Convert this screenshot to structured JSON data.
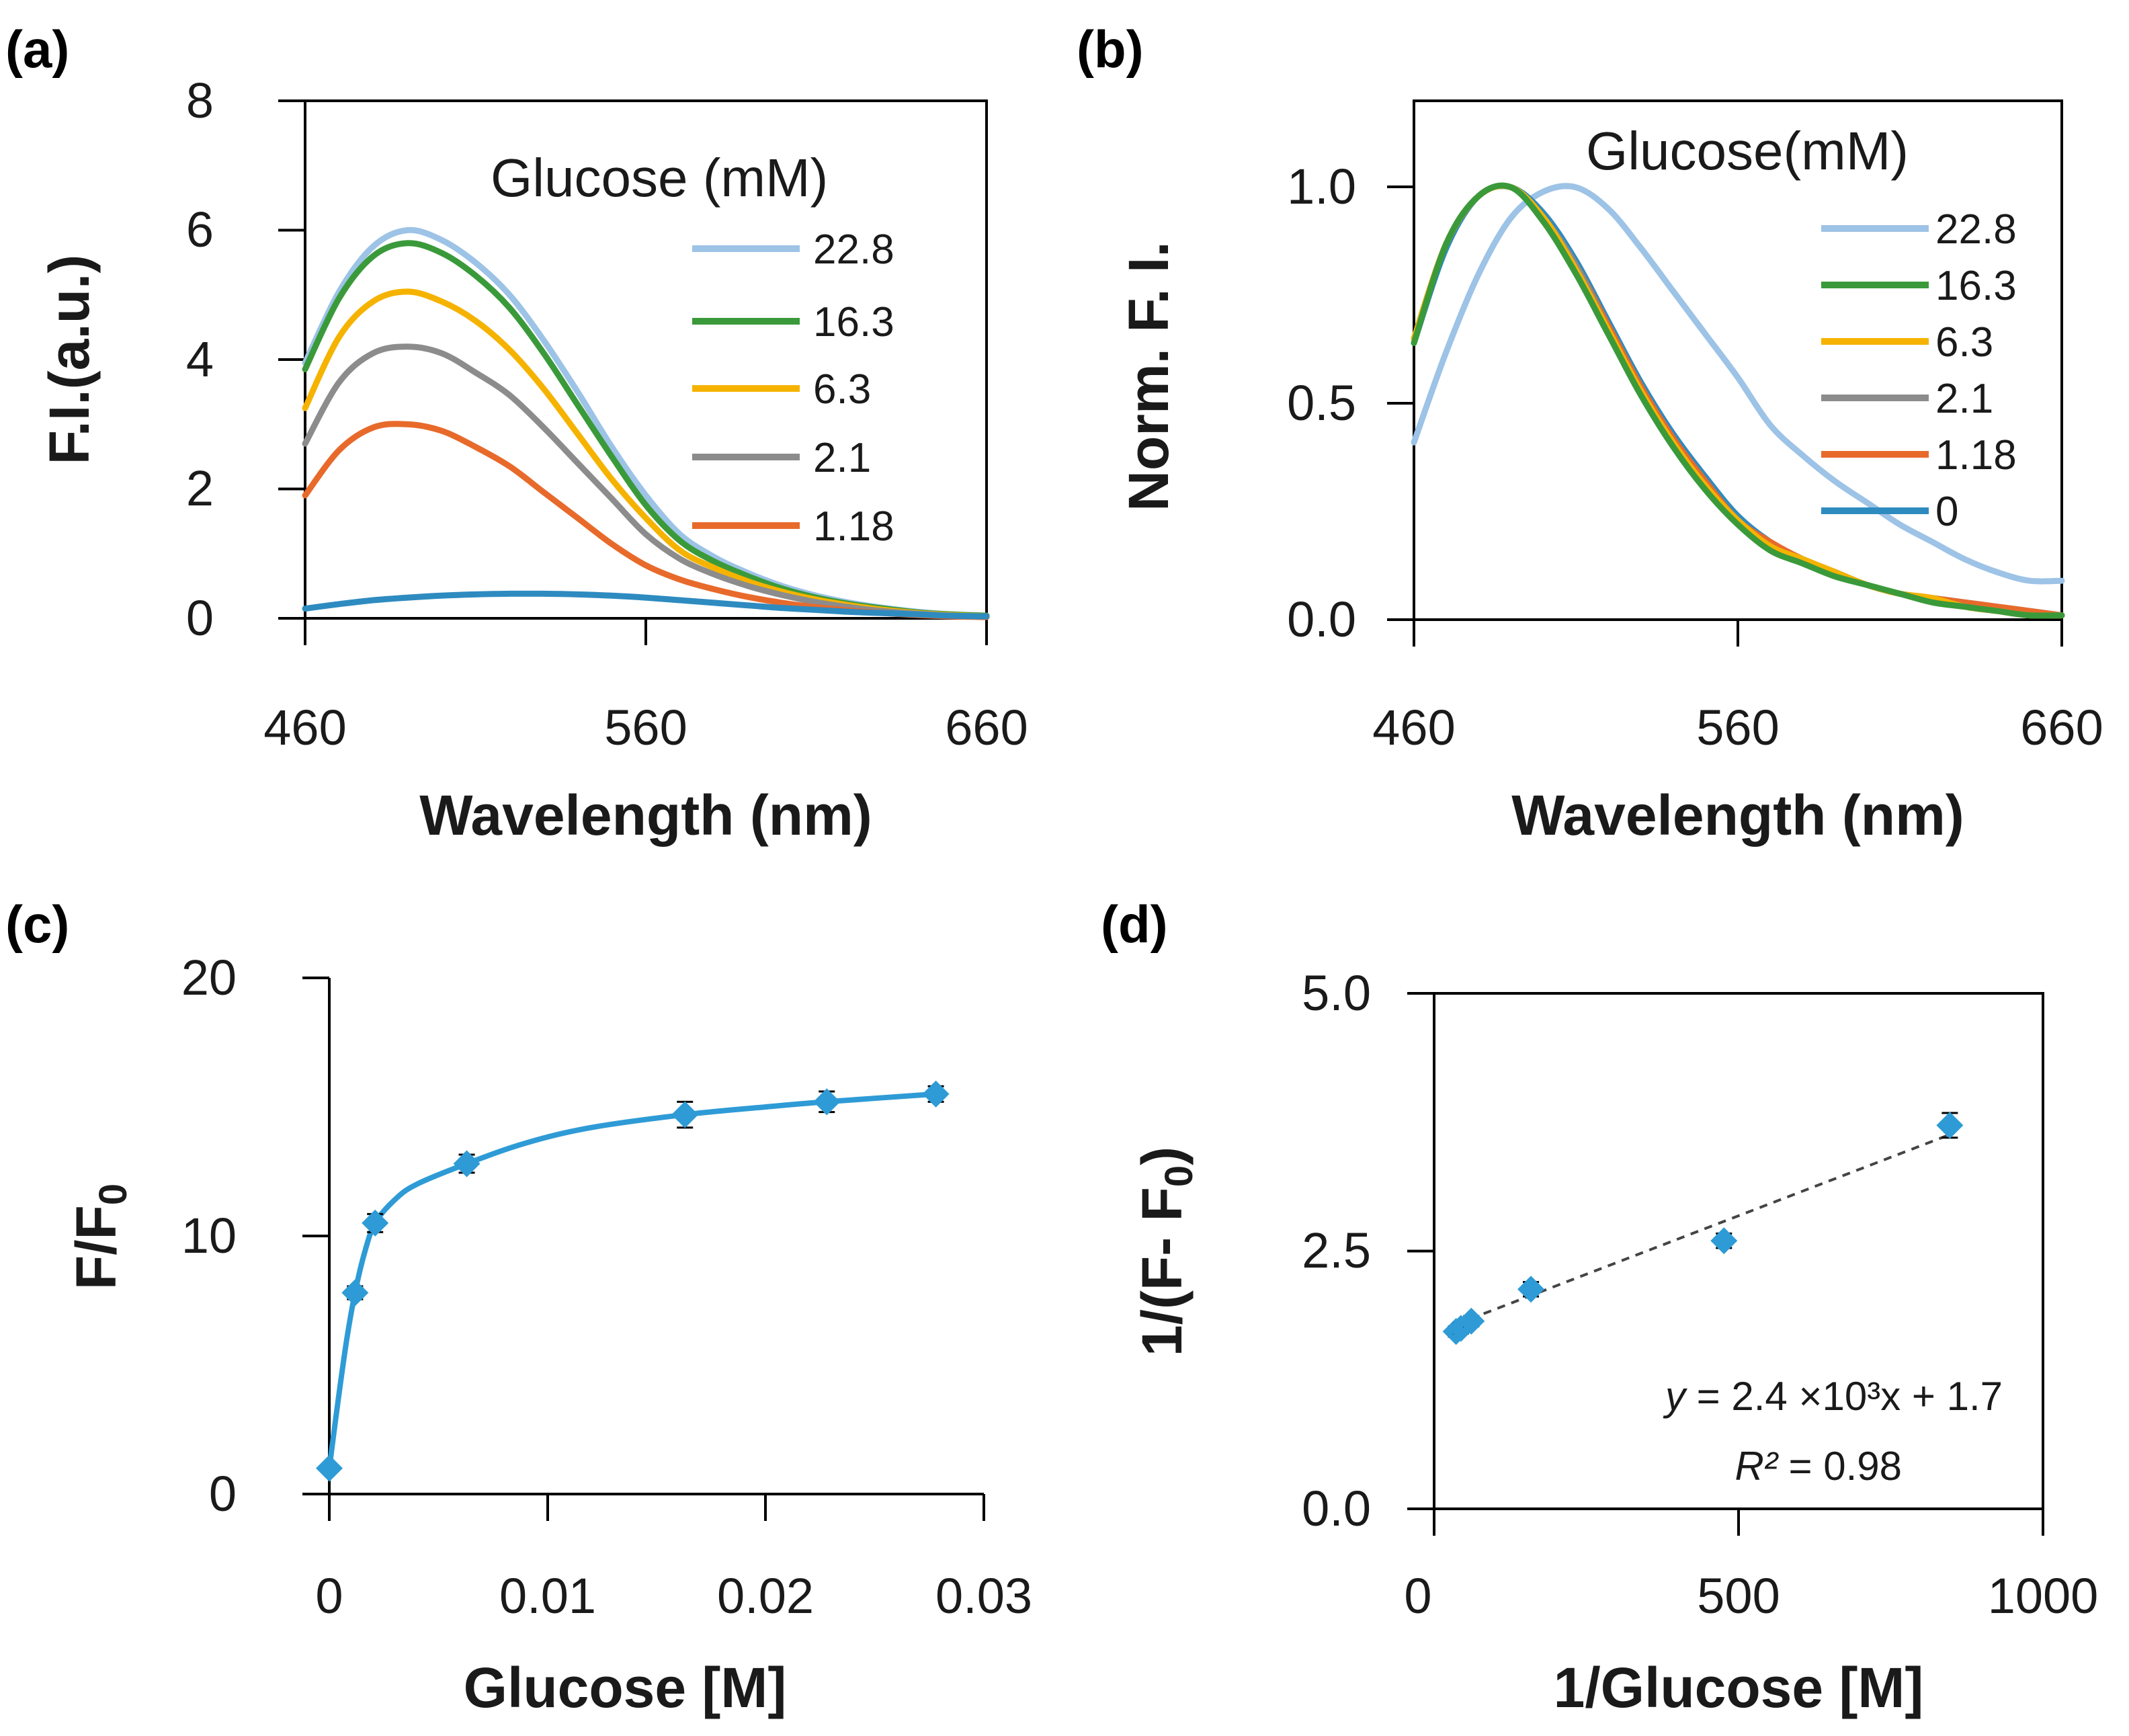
{
  "chart_data": [
    {
      "id": "a",
      "panel_label": "(a)",
      "type": "line",
      "xlabel": "Wavelength (nm)",
      "ylabel": "F.I.(a.u.)",
      "xlim": [
        460,
        660
      ],
      "ylim": [
        0,
        8
      ],
      "xticks": [
        "460",
        "560",
        "660"
      ],
      "yticks": [
        "0",
        "2",
        "4",
        "6",
        "8"
      ],
      "legend_title": "Glucose  (mM)",
      "x": [
        460,
        470,
        480,
        490,
        500,
        510,
        520,
        530,
        540,
        550,
        560,
        570,
        580,
        590,
        600,
        610,
        620,
        630,
        640,
        650,
        660
      ],
      "series": [
        {
          "name": "22.8",
          "color": "#9DC3E6",
          "legend": true,
          "values": [
            3.95,
            5.05,
            5.75,
            6.0,
            5.85,
            5.5,
            5.0,
            4.3,
            3.5,
            2.65,
            1.9,
            1.3,
            0.95,
            0.7,
            0.5,
            0.35,
            0.24,
            0.16,
            0.1,
            0.06,
            0.04
          ]
        },
        {
          "name": "16.3",
          "color": "#3A9A3A",
          "legend": true,
          "values": [
            3.85,
            4.95,
            5.6,
            5.8,
            5.65,
            5.3,
            4.8,
            4.1,
            3.3,
            2.5,
            1.75,
            1.2,
            0.88,
            0.65,
            0.46,
            0.32,
            0.22,
            0.15,
            0.09,
            0.06,
            0.04
          ]
        },
        {
          "name": "6.3",
          "color": "#F5B300",
          "legend": true,
          "values": [
            3.25,
            4.35,
            4.9,
            5.05,
            4.9,
            4.6,
            4.15,
            3.55,
            2.85,
            2.15,
            1.55,
            1.05,
            0.78,
            0.57,
            0.41,
            0.29,
            0.2,
            0.13,
            0.08,
            0.05,
            0.03
          ]
        },
        {
          "name": "2.1",
          "color": "#8C8C8C",
          "legend": true,
          "values": [
            2.7,
            3.65,
            4.1,
            4.2,
            4.1,
            3.8,
            3.45,
            2.95,
            2.4,
            1.85,
            1.3,
            0.92,
            0.68,
            0.5,
            0.36,
            0.25,
            0.17,
            0.11,
            0.07,
            0.04,
            0.03
          ]
        },
        {
          "name": "1.18",
          "color": "#E86A2B",
          "legend": true,
          "values": [
            1.9,
            2.6,
            2.95,
            3.0,
            2.9,
            2.65,
            2.35,
            1.95,
            1.55,
            1.15,
            0.82,
            0.6,
            0.45,
            0.33,
            0.24,
            0.17,
            0.12,
            0.08,
            0.05,
            0.03,
            0.02
          ]
        },
        {
          "name": "0",
          "color": "#2E8BC0",
          "legend": false,
          "values": [
            0.15,
            0.22,
            0.28,
            0.32,
            0.35,
            0.37,
            0.38,
            0.38,
            0.37,
            0.35,
            0.32,
            0.28,
            0.24,
            0.2,
            0.16,
            0.13,
            0.1,
            0.08,
            0.06,
            0.04,
            0.03
          ]
        }
      ]
    },
    {
      "id": "b",
      "panel_label": "(b)",
      "type": "line",
      "xlabel": "Wavelength (nm)",
      "ylabel": "Norm. F. I.",
      "xlim": [
        460,
        660
      ],
      "ylim": [
        0,
        1.2
      ],
      "yticks_values": [
        0,
        0.5,
        1.0
      ],
      "xticks": [
        "460",
        "560",
        "660"
      ],
      "yticks": [
        "0.0",
        "0.5",
        "1.0"
      ],
      "legend_title": "Glucose(mM)",
      "x": [
        460,
        470,
        480,
        490,
        500,
        510,
        520,
        530,
        540,
        550,
        560,
        570,
        580,
        590,
        600,
        610,
        620,
        630,
        640,
        650,
        660
      ],
      "series": [
        {
          "name": "22.8",
          "color": "#9DC3E6",
          "values": [
            0.41,
            0.62,
            0.8,
            0.93,
            0.99,
            1.0,
            0.95,
            0.86,
            0.76,
            0.66,
            0.56,
            0.45,
            0.38,
            0.32,
            0.27,
            0.22,
            0.18,
            0.14,
            0.11,
            0.09,
            0.09
          ]
        },
        {
          "name": "16.3",
          "color": "#3A9A3A",
          "values": [
            0.64,
            0.87,
            0.98,
            1.0,
            0.92,
            0.8,
            0.66,
            0.52,
            0.4,
            0.3,
            0.22,
            0.16,
            0.13,
            0.1,
            0.08,
            0.06,
            0.04,
            0.03,
            0.02,
            0.01,
            0.01
          ]
        },
        {
          "name": "6.3",
          "color": "#F5B300",
          "values": [
            0.65,
            0.87,
            0.98,
            1.0,
            0.93,
            0.81,
            0.67,
            0.53,
            0.41,
            0.31,
            0.23,
            0.17,
            0.14,
            0.11,
            0.08,
            0.06,
            0.05,
            0.03,
            0.02,
            0.01,
            0.01
          ]
        },
        {
          "name": "2.1",
          "color": "#8C8C8C",
          "values": [
            0.65,
            0.87,
            0.98,
            1.0,
            0.93,
            0.82,
            0.67,
            0.53,
            0.41,
            0.31,
            0.23,
            0.17,
            0.14,
            0.11,
            0.08,
            0.06,
            0.05,
            0.03,
            0.02,
            0.01,
            0.01
          ]
        },
        {
          "name": "1.18",
          "color": "#E86A2B",
          "values": [
            0.65,
            0.87,
            0.98,
            1.0,
            0.93,
            0.82,
            0.68,
            0.54,
            0.42,
            0.32,
            0.23,
            0.18,
            0.14,
            0.11,
            0.08,
            0.06,
            0.05,
            0.04,
            0.03,
            0.02,
            0.01
          ]
        },
        {
          "name": "0",
          "color": "#2E8BC0",
          "values": [
            0.64,
            0.86,
            0.98,
            1.0,
            0.94,
            0.83,
            0.69,
            0.55,
            0.43,
            0.33,
            0.24,
            0.18,
            0.14,
            0.11,
            0.08,
            0.06,
            0.05,
            0.04,
            0.03,
            0.02,
            0.01
          ]
        }
      ]
    },
    {
      "id": "c",
      "panel_label": "(c)",
      "type": "scatter",
      "xlabel": "Glucose [M]",
      "ylabel_main": "F/F",
      "ylabel_sub": "0",
      "xlim": [
        0,
        0.03
      ],
      "ylim": [
        0,
        20
      ],
      "xticks_values": [
        0,
        0.01,
        0.02,
        0.03
      ],
      "xticks": [
        "0",
        "0.01",
        "0.02",
        "0.03"
      ],
      "yticks_values": [
        0,
        10,
        20
      ],
      "yticks": [
        "0",
        "10",
        "20"
      ],
      "color": "#2E9BD6",
      "points": [
        {
          "x": 0,
          "y": 1.0,
          "err": 0.1
        },
        {
          "x": 0.00118,
          "y": 7.8,
          "err": 0.25
        },
        {
          "x": 0.0021,
          "y": 10.5,
          "err": 0.35
        },
        {
          "x": 0.0063,
          "y": 12.8,
          "err": 0.35
        },
        {
          "x": 0.0163,
          "y": 14.7,
          "err": 0.5
        },
        {
          "x": 0.0228,
          "y": 15.2,
          "err": 0.4
        },
        {
          "x": 0.0278,
          "y": 15.5,
          "err": 0.3
        }
      ],
      "fit_curve": {
        "x": [
          0,
          0.0004,
          0.0008,
          0.00118,
          0.0016,
          0.0021,
          0.003,
          0.004,
          0.0063,
          0.009,
          0.012,
          0.0163,
          0.02,
          0.0228,
          0.0278
        ],
        "y": [
          1.0,
          3.6,
          6.0,
          7.8,
          9.3,
          10.5,
          11.4,
          12.0,
          12.8,
          13.6,
          14.2,
          14.7,
          15.0,
          15.2,
          15.5
        ]
      }
    },
    {
      "id": "d",
      "panel_label": "(d)",
      "type": "scatter",
      "xlabel": "1/Glucose [M]",
      "ylabel_main": "1/(F- F",
      "ylabel_sub": "0",
      "ylabel_end": ")",
      "xlim": [
        0,
        1000
      ],
      "ylim": [
        0,
        5
      ],
      "xticks_values": [
        0,
        500,
        1000
      ],
      "xticks": [
        "0",
        "500",
        "1000"
      ],
      "yticks_values": [
        0,
        2.5,
        5
      ],
      "yticks": [
        "0.0",
        "2.5",
        "5.0"
      ],
      "color": "#2E9BD6",
      "points": [
        {
          "x": 36,
          "y": 1.72,
          "err": 0.05
        },
        {
          "x": 44,
          "y": 1.75,
          "err": 0.05
        },
        {
          "x": 61,
          "y": 1.82,
          "err": 0.05
        },
        {
          "x": 159,
          "y": 2.13,
          "err": 0.07
        },
        {
          "x": 476,
          "y": 2.6,
          "err": 0.07
        },
        {
          "x": 847,
          "y": 3.72,
          "err": 0.12
        }
      ],
      "trendline": {
        "x": [
          36,
          847
        ],
        "y": [
          1.79,
          3.63
        ]
      },
      "equation_italic": "y",
      "equation_text": " = 2.4 ×10³x + 1.7",
      "r2_italic": "R²",
      "r2_text": " = 0.98"
    }
  ]
}
